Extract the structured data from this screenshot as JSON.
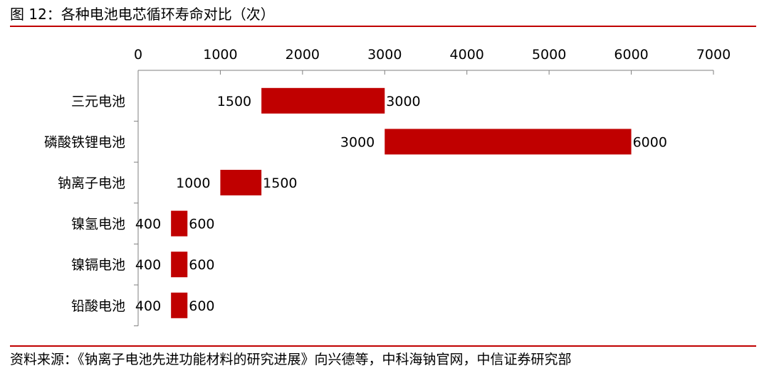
{
  "header": {
    "title": "图 12：各种电池电芯循环寿命对比（次）"
  },
  "footer": {
    "source": "资料来源：《钠离子电池先进功能材料的研究进展》向兴德等，中科海钠官网，中信证券研究部"
  },
  "colors": {
    "accent": "#c00000",
    "bar": "#c00000"
  },
  "chart_data": {
    "type": "bar",
    "orientation": "horizontal",
    "subtype": "floating-range",
    "title": "",
    "xlabel": "",
    "ylabel": "",
    "xlim": [
      0,
      7000
    ],
    "x_ticks": [
      0,
      1000,
      2000,
      3000,
      4000,
      5000,
      6000,
      7000
    ],
    "x_axis_position": "top",
    "grid": false,
    "legend": "none",
    "categories": [
      "三元电池",
      "磷酸铁锂电池",
      "钠离子电池",
      "镍氢电池",
      "镍镉电池",
      "铅酸电池"
    ],
    "series": [
      {
        "values": [
          [
            1500,
            3000
          ],
          [
            3000,
            6000
          ],
          [
            1000,
            1500
          ],
          [
            400,
            600
          ],
          [
            400,
            600
          ],
          [
            400,
            600
          ]
        ]
      }
    ]
  }
}
